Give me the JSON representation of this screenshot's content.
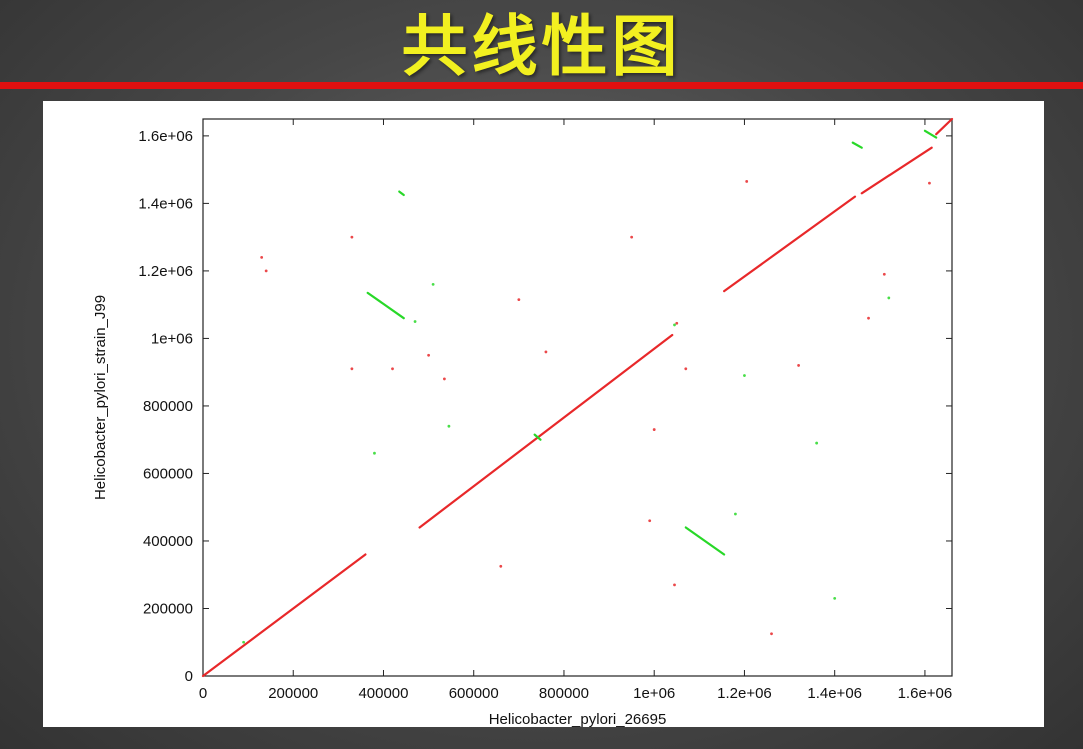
{
  "slide": {
    "title": "共线性图"
  },
  "colors": {
    "title_text": "#f2f020",
    "title_rule": "#e01010",
    "forward_match": "#e8282a",
    "reverse_match": "#28d828"
  },
  "chart_data": {
    "type": "scatter",
    "title": "",
    "xlabel": "Helicobacter_pylori_26695",
    "ylabel": "Helicobacter_pylori_strain_J99",
    "xlim": [
      0,
      1660000
    ],
    "ylim": [
      0,
      1650000
    ],
    "x_ticks": [
      0,
      200000,
      400000,
      600000,
      800000,
      1000000,
      1200000,
      1400000,
      1600000
    ],
    "x_tick_labels": [
      "0",
      "200000",
      "400000",
      "600000",
      "800000",
      "1e+06",
      "1.2e+06",
      "1.4e+06",
      "1.6e+06"
    ],
    "y_ticks": [
      0,
      200000,
      400000,
      600000,
      800000,
      1000000,
      1200000,
      1400000,
      1600000
    ],
    "y_tick_labels": [
      "0",
      "200000",
      "400000",
      "600000",
      "800000",
      "1e+06",
      "1.2e+06",
      "1.4e+06",
      "1.6e+06"
    ],
    "grid": false,
    "legend": "none",
    "series": [
      {
        "color": "#e8282a",
        "segments": [
          [
            [
              0,
              0
            ],
            [
              360000,
              360000
            ]
          ],
          [
            [
              480000,
              440000
            ],
            [
              1040000,
              1010000
            ]
          ],
          [
            [
              1155000,
              1140000
            ],
            [
              1445000,
              1420000
            ]
          ],
          [
            [
              1460000,
              1430000
            ],
            [
              1615000,
              1565000
            ]
          ],
          [
            [
              1625000,
              1605000
            ],
            [
              1660000,
              1650000
            ]
          ]
        ],
        "points": [
          [
            130000,
            1240000
          ],
          [
            140000,
            1200000
          ],
          [
            330000,
            1300000
          ],
          [
            330000,
            910000
          ],
          [
            420000,
            910000
          ],
          [
            500000,
            950000
          ],
          [
            535000,
            880000
          ],
          [
            700000,
            1115000
          ],
          [
            760000,
            960000
          ],
          [
            950000,
            1300000
          ],
          [
            1000000,
            730000
          ],
          [
            1070000,
            910000
          ],
          [
            1205000,
            1465000
          ],
          [
            1320000,
            920000
          ],
          [
            1475000,
            1060000
          ],
          [
            1510000,
            1190000
          ],
          [
            1610000,
            1460000
          ],
          [
            660000,
            325000
          ],
          [
            1045000,
            270000
          ],
          [
            1260000,
            125000
          ],
          [
            990000,
            460000
          ],
          [
            1050000,
            1045000
          ]
        ]
      },
      {
        "color": "#28d828",
        "segments": [
          [
            [
              365000,
              1135000
            ],
            [
              445000,
              1060000
            ]
          ],
          [
            [
              1070000,
              440000
            ],
            [
              1155000,
              360000
            ]
          ],
          [
            [
              1440000,
              1580000
            ],
            [
              1460000,
              1565000
            ]
          ],
          [
            [
              1600000,
              1615000
            ],
            [
              1625000,
              1595000
            ]
          ],
          [
            [
              435000,
              1435000
            ],
            [
              445000,
              1425000
            ]
          ],
          [
            [
              735000,
              715000
            ],
            [
              748000,
              700000
            ]
          ]
        ],
        "points": [
          [
            510000,
            1160000
          ],
          [
            470000,
            1050000
          ],
          [
            380000,
            660000
          ],
          [
            545000,
            740000
          ],
          [
            1180000,
            480000
          ],
          [
            1045000,
            1040000
          ],
          [
            90000,
            100000
          ],
          [
            1400000,
            230000
          ],
          [
            1200000,
            890000
          ],
          [
            1360000,
            690000
          ],
          [
            1520000,
            1120000
          ]
        ]
      }
    ]
  }
}
